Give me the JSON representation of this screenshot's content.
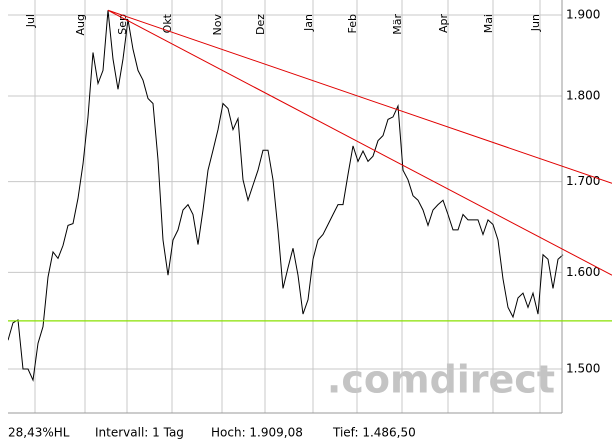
{
  "chart_data": {
    "type": "line",
    "watermark": ".comdirect",
    "footer": [
      "28,43%HL",
      "Intervall: 1 Tag",
      "Hoch: 1.909,08",
      "Tief: 1.486,50"
    ],
    "log_scale": true,
    "grid": true,
    "xlim": [
      0,
      110.8
    ],
    "xticks": [
      {
        "value": 5.4,
        "label": "Jul"
      },
      {
        "value": 15.4,
        "label": "Aug"
      },
      {
        "value": 23.8,
        "label": "Sep"
      },
      {
        "value": 32.8,
        "label": "Okt"
      },
      {
        "value": 42.8,
        "label": "Nov"
      },
      {
        "value": 51.4,
        "label": "Dez"
      },
      {
        "value": 61,
        "label": "Jan"
      },
      {
        "value": 69.8,
        "label": "Feb"
      },
      {
        "value": 78.8,
        "label": "Mär"
      },
      {
        "value": 88,
        "label": "Apr"
      },
      {
        "value": 97,
        "label": "Mai"
      },
      {
        "value": 106.4,
        "label": "Jun"
      }
    ],
    "ylim": [
      1.4566,
      1.9127
    ],
    "yticks": [
      {
        "value": 1.5,
        "label": "1.500"
      },
      {
        "value": 1.6,
        "label": "1.600"
      },
      {
        "value": 1.7,
        "label": "1.700"
      },
      {
        "value": 1.8,
        "label": "1.800"
      },
      {
        "value": 1.9,
        "label": "1.900"
      }
    ],
    "series": [
      {
        "color": "#000000",
        "values": [
          1.529,
          1.547,
          1.55,
          1.5,
          1.5,
          1.489,
          1.526,
          1.543,
          1.595,
          1.622,
          1.615,
          1.629,
          1.651,
          1.653,
          1.681,
          1.72,
          1.775,
          1.853,
          1.815,
          1.831,
          1.906,
          1.845,
          1.808,
          1.845,
          1.894,
          1.857,
          1.831,
          1.819,
          1.797,
          1.791,
          1.725,
          1.635,
          1.597,
          1.635,
          1.646,
          1.668,
          1.674,
          1.663,
          1.63,
          1.668,
          1.713,
          1.736,
          1.76,
          1.791,
          1.785,
          1.76,
          1.773,
          1.702,
          1.679,
          1.696,
          1.713,
          1.736,
          1.736,
          1.702,
          1.646,
          1.583,
          1.605,
          1.626,
          1.597,
          1.556,
          1.571,
          1.614,
          1.635,
          1.641,
          1.652,
          1.663,
          1.674,
          1.674,
          1.708,
          1.741,
          1.723,
          1.735,
          1.723,
          1.729,
          1.747,
          1.753,
          1.772,
          1.775,
          1.788,
          1.713,
          1.702,
          1.684,
          1.679,
          1.668,
          1.651,
          1.668,
          1.674,
          1.679,
          1.663,
          1.646,
          1.646,
          1.663,
          1.657,
          1.657,
          1.657,
          1.641,
          1.657,
          1.652,
          1.635,
          1.593,
          1.563,
          1.553,
          1.573,
          1.578,
          1.563,
          1.578,
          1.556,
          1.619,
          1.614,
          1.583,
          1.614,
          1.619
        ]
      }
    ],
    "trendlines": [
      {
        "color": "#e00000",
        "x": [
          20,
          120.8
        ],
        "y": [
          1.906,
          1.698
        ]
      },
      {
        "color": "#e00000",
        "x": [
          20,
          120.8
        ],
        "y": [
          1.906,
          1.597
        ]
      }
    ],
    "support": {
      "color": "#88e000",
      "value": 1.549
    }
  }
}
